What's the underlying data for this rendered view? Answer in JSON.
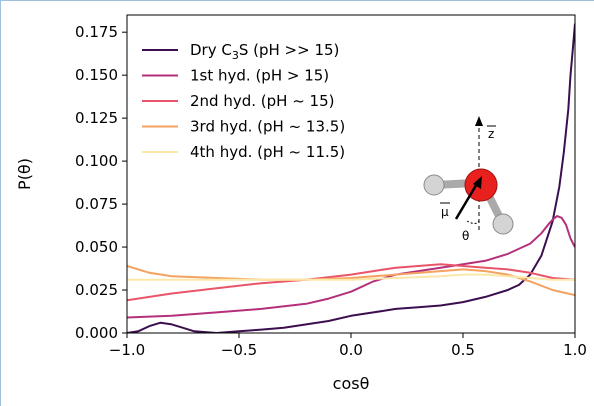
{
  "chart_data": {
    "type": "line",
    "xlabel": "cosθ",
    "ylabel": "P(θ)",
    "xlim": [
      -1.0,
      1.0
    ],
    "ylim": [
      0.0,
      0.185
    ],
    "xticks": [
      "−1.0",
      "−0.5",
      "0.0",
      "0.5",
      "1.0"
    ],
    "yticks": [
      "0.000",
      "0.025",
      "0.050",
      "0.075",
      "0.100",
      "0.125",
      "0.150",
      "0.175"
    ],
    "legend_position": "top-left",
    "grid": false,
    "series": [
      {
        "name_main": "Dry C",
        "name_sub": "3",
        "name_rest": "S (pH >> 15)",
        "color": "#3b0f4f",
        "x": [
          -1.0,
          -0.95,
          -0.9,
          -0.85,
          -0.8,
          -0.75,
          -0.7,
          -0.6,
          -0.5,
          -0.4,
          -0.3,
          -0.2,
          -0.1,
          0.0,
          0.1,
          0.2,
          0.3,
          0.4,
          0.5,
          0.6,
          0.7,
          0.75,
          0.8,
          0.85,
          0.9,
          0.93,
          0.95,
          0.97,
          0.98,
          0.99,
          1.0
        ],
        "y": [
          0.0,
          0.001,
          0.004,
          0.006,
          0.005,
          0.003,
          0.001,
          0.0,
          0.001,
          0.002,
          0.003,
          0.005,
          0.007,
          0.01,
          0.012,
          0.014,
          0.015,
          0.016,
          0.018,
          0.021,
          0.025,
          0.028,
          0.034,
          0.045,
          0.065,
          0.085,
          0.105,
          0.13,
          0.15,
          0.165,
          0.18
        ]
      },
      {
        "name_main": "1st hyd. (pH > 15)",
        "name_sub": "",
        "name_rest": "",
        "color": "#b5307b",
        "x": [
          -1.0,
          -0.8,
          -0.6,
          -0.4,
          -0.2,
          -0.1,
          0.0,
          0.1,
          0.2,
          0.3,
          0.4,
          0.5,
          0.6,
          0.7,
          0.8,
          0.85,
          0.88,
          0.9,
          0.92,
          0.94,
          0.96,
          0.98,
          1.0
        ],
        "y": [
          0.009,
          0.01,
          0.012,
          0.014,
          0.017,
          0.02,
          0.024,
          0.03,
          0.034,
          0.036,
          0.038,
          0.04,
          0.042,
          0.046,
          0.052,
          0.058,
          0.063,
          0.066,
          0.068,
          0.067,
          0.063,
          0.055,
          0.05
        ]
      },
      {
        "name_main": "2nd hyd. (pH ~ 15)",
        "name_sub": "",
        "name_rest": "",
        "color": "#e8556a",
        "x": [
          -1.0,
          -0.8,
          -0.6,
          -0.4,
          -0.2,
          0.0,
          0.1,
          0.2,
          0.3,
          0.4,
          0.5,
          0.6,
          0.7,
          0.8,
          0.9,
          1.0
        ],
        "y": [
          0.019,
          0.023,
          0.026,
          0.029,
          0.031,
          0.034,
          0.036,
          0.038,
          0.039,
          0.04,
          0.039,
          0.038,
          0.037,
          0.035,
          0.032,
          0.031
        ]
      },
      {
        "name_main": "3rd hyd. (pH ~ 13.5)",
        "name_sub": "",
        "name_rest": "",
        "color": "#f4a261",
        "x": [
          -1.0,
          -0.9,
          -0.8,
          -0.6,
          -0.4,
          -0.2,
          0.0,
          0.2,
          0.4,
          0.5,
          0.6,
          0.7,
          0.8,
          0.9,
          1.0
        ],
        "y": [
          0.039,
          0.035,
          0.033,
          0.032,
          0.031,
          0.031,
          0.032,
          0.034,
          0.036,
          0.037,
          0.036,
          0.034,
          0.03,
          0.025,
          0.022
        ]
      },
      {
        "name_main": "4th hyd. (pH ~ 11.5)",
        "name_sub": "",
        "name_rest": "",
        "color": "#fbe7a8",
        "x": [
          -1.0,
          -0.8,
          -0.6,
          -0.4,
          -0.2,
          0.0,
          0.2,
          0.4,
          0.5,
          0.6,
          0.7,
          0.8,
          0.9,
          1.0
        ],
        "y": [
          0.031,
          0.031,
          0.031,
          0.031,
          0.031,
          0.031,
          0.032,
          0.033,
          0.034,
          0.034,
          0.033,
          0.032,
          0.031,
          0.031
        ]
      }
    ],
    "inset": {
      "z_label": "z",
      "mu_label": "μ",
      "theta_label": "θ",
      "atom_color": "#e8211e",
      "h_color": "#d8d8d8"
    }
  }
}
